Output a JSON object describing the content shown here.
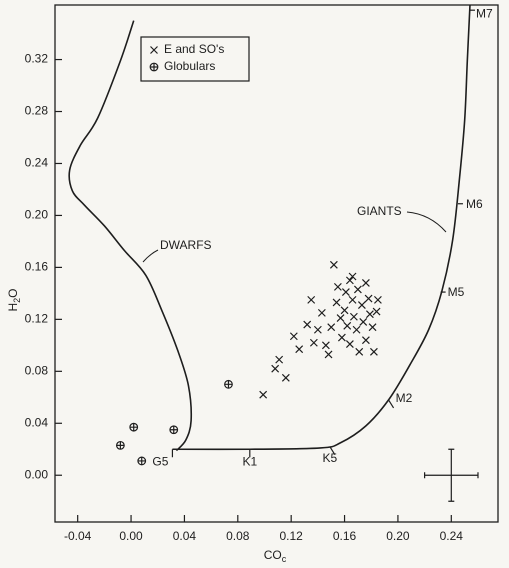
{
  "chart_data": {
    "type": "scatter",
    "x_label": {
      "main": "CO",
      "sub": "c"
    },
    "y_label": {
      "main": "H",
      "sub": "2",
      "end": "O"
    },
    "xlim": [
      -0.057,
      0.275
    ],
    "ylim": [
      -0.036,
      0.362
    ],
    "xticks": [
      -0.04,
      {
        "value": 0,
        "label": "0.00"
      },
      0.04,
      0.08,
      0.12,
      0.16,
      {
        "value": 0.2,
        "label": "0.20"
      },
      0.24
    ],
    "yticks": [
      {
        "value": 0,
        "label": "0.00"
      },
      0.04,
      0.08,
      0.12,
      0.16,
      {
        "value": 0.2,
        "label": "0.20"
      },
      0.24,
      0.28,
      0.32
    ],
    "legend_position": "upper left",
    "series": [
      {
        "name": "E and SO's",
        "marker": "x",
        "color": "#1e1e1e",
        "x": [
          0.099,
          0.108,
          0.111,
          0.116,
          0.122,
          0.126,
          0.132,
          0.135,
          0.137,
          0.14,
          0.143,
          0.146,
          0.148,
          0.15,
          0.152,
          0.154,
          0.155,
          0.157,
          0.158,
          0.16,
          0.161,
          0.162,
          0.164,
          0.164,
          0.166,
          0.166,
          0.167,
          0.169,
          0.17,
          0.171,
          0.173,
          0.174,
          0.176,
          0.176,
          0.178,
          0.179,
          0.181,
          0.182,
          0.184,
          0.185
        ],
        "values": [
          0.062,
          0.082,
          0.089,
          0.075,
          0.107,
          0.097,
          0.116,
          0.135,
          0.102,
          0.112,
          0.125,
          0.1,
          0.093,
          0.114,
          0.162,
          0.133,
          0.145,
          0.121,
          0.106,
          0.127,
          0.141,
          0.115,
          0.15,
          0.101,
          0.135,
          0.153,
          0.122,
          0.112,
          0.143,
          0.095,
          0.131,
          0.118,
          0.148,
          0.104,
          0.136,
          0.124,
          0.114,
          0.095,
          0.126,
          0.135
        ]
      },
      {
        "name": "Globulars",
        "marker": "circle-plus",
        "color": "#1e1e1e",
        "x": [
          0.002,
          0.032,
          -0.008,
          0.008,
          0.073
        ],
        "values": [
          0.037,
          0.035,
          0.023,
          0.011,
          0.07
        ]
      }
    ],
    "curves": [
      {
        "name": "DWARFS",
        "color": "#1e1e1e",
        "x": [
          0.002,
          -0.008,
          -0.025,
          -0.038,
          -0.046,
          -0.044,
          -0.035,
          -0.02,
          -0.005,
          0.011,
          0.023,
          0.035,
          0.043,
          0.045,
          0.041,
          0.034
        ],
        "values": [
          0.35,
          0.319,
          0.275,
          0.254,
          0.235,
          0.219,
          0.208,
          0.192,
          0.173,
          0.154,
          0.127,
          0.096,
          0.069,
          0.042,
          0.027,
          0.019
        ]
      },
      {
        "name": "GIANTS",
        "color": "#1e1e1e",
        "x": [
          0.031,
          0.089,
          0.142,
          0.157,
          0.176,
          0.193,
          0.209,
          0.223,
          0.233,
          0.241,
          0.246,
          0.25,
          0.252,
          0.254
        ],
        "values": [
          0.02,
          0.02,
          0.021,
          0.025,
          0.038,
          0.058,
          0.085,
          0.112,
          0.142,
          0.181,
          0.227,
          0.273,
          0.319,
          0.362
        ]
      }
    ],
    "spectral_types": {
      "labels": [
        "G5",
        "K1",
        "K5",
        "M2",
        "M5",
        "M6",
        "M7"
      ],
      "x": [
        0.031,
        0.089,
        0.149,
        0.193,
        0.232,
        0.245,
        0.254
      ],
      "y": [
        0.02,
        0.02,
        0.022,
        0.058,
        0.141,
        0.209,
        0.358
      ]
    },
    "error_bar": {
      "x": 0.24,
      "y": 0,
      "xerr": 0.02,
      "yerr": 0.02
    }
  }
}
